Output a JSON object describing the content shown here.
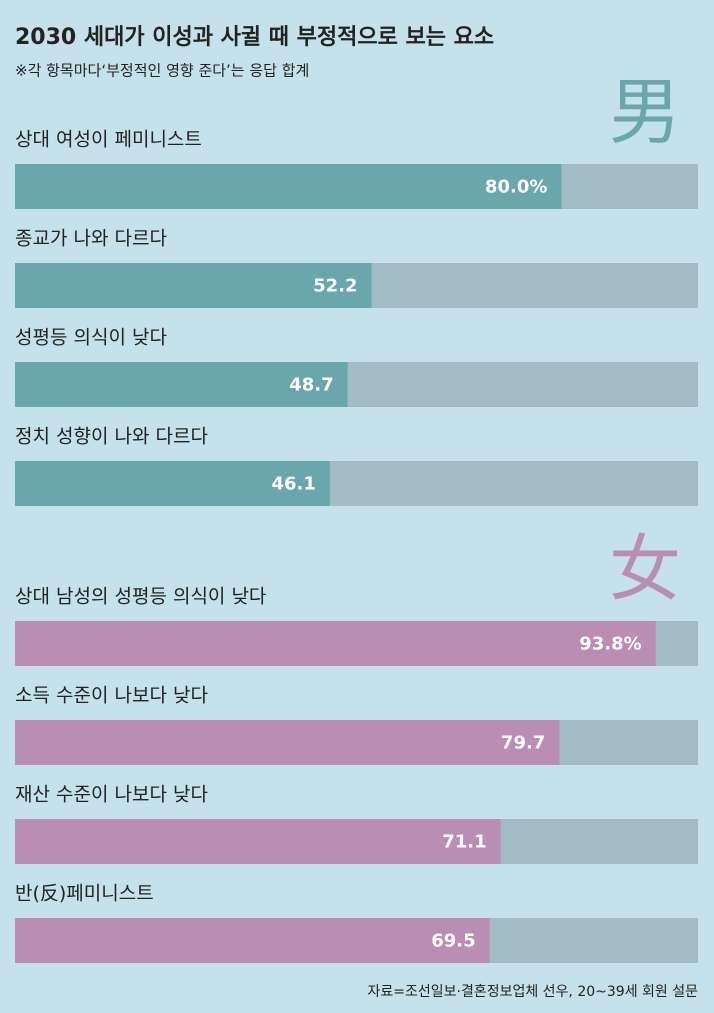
{
  "title": "2030 세대가 이성과 사귈 때 부정적으로 보는 요소",
  "note": "※각 항목마다‘부정적인 영향 준다’는 응답 합계",
  "source": "자료=조선일보·결혼정보업체 선우, 20~39세 회원 설문",
  "chart_data": [
    {
      "type": "bar",
      "group_label": "男",
      "color": "#69a7ad",
      "categories": [
        "상대 여성이 페미니스트",
        "종교가 나와 다르다",
        "성평등 의식이 낮다",
        "정치 성향이 나와 다르다"
      ],
      "values": [
        80.0,
        52.2,
        48.7,
        46.1
      ],
      "value_labels": [
        "80.0%",
        "52.2",
        "48.7",
        "46.1"
      ],
      "xlim": [
        0,
        100
      ]
    },
    {
      "type": "bar",
      "group_label": "女",
      "color": "#b98db4",
      "categories": [
        "상대 남성의 성평등 의식이 낮다",
        "소득 수준이 나보다 낮다",
        "재산 수준이 나보다 낮다",
        "반(反)페미니스트"
      ],
      "values": [
        93.8,
        79.7,
        71.1,
        69.5
      ],
      "value_labels": [
        "93.8%",
        "79.7",
        "71.1",
        "69.5"
      ],
      "xlim": [
        0,
        100
      ]
    }
  ]
}
